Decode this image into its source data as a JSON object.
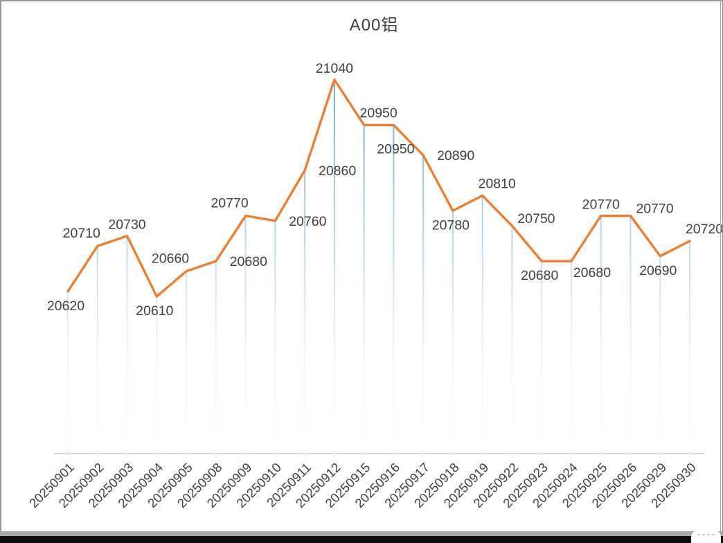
{
  "chart_data": {
    "type": "line",
    "title": "A00铝",
    "categories": [
      "20250901",
      "20250902",
      "20250903",
      "20250904",
      "20250905",
      "20250908",
      "20250909",
      "20250910",
      "20250911",
      "20250912",
      "20250915",
      "20250916",
      "20250917",
      "20250918",
      "20250919",
      "20250922",
      "20250923",
      "20250924",
      "20250925",
      "20250926",
      "20250929",
      "20250930"
    ],
    "values": [
      20620,
      20710,
      20730,
      20610,
      20660,
      20680,
      20770,
      20760,
      20860,
      21040,
      20950,
      20950,
      20890,
      20780,
      20810,
      20750,
      20680,
      20680,
      20770,
      20770,
      20690,
      20720
    ],
    "xlabel": "",
    "ylabel": "",
    "ylim": [
      20560,
      21100
    ],
    "grid": false,
    "legend_position": "none",
    "markers": false,
    "data_labels_shown": true,
    "label_placements": [
      "below",
      "above-left",
      "above",
      "below",
      "above-left",
      "right",
      "above-left",
      "right",
      "right",
      "above",
      "above-right",
      "below-far",
      "right",
      "below",
      "above-right",
      "right-above",
      "below",
      "below-right",
      "above",
      "right-above",
      "below",
      "above-right"
    ],
    "colors": {
      "series_line": "#ED7D31",
      "data_label_text": "#404040",
      "axis_label_text": "#404040",
      "title_text": "#404040",
      "axis_line": "#d9d9d9",
      "axis_tick": "#efefef",
      "dropline_top": "#5B9BD5",
      "dropline_mid": "#b3cde7",
      "dropline_bottom": "#e9f1f8"
    }
  }
}
